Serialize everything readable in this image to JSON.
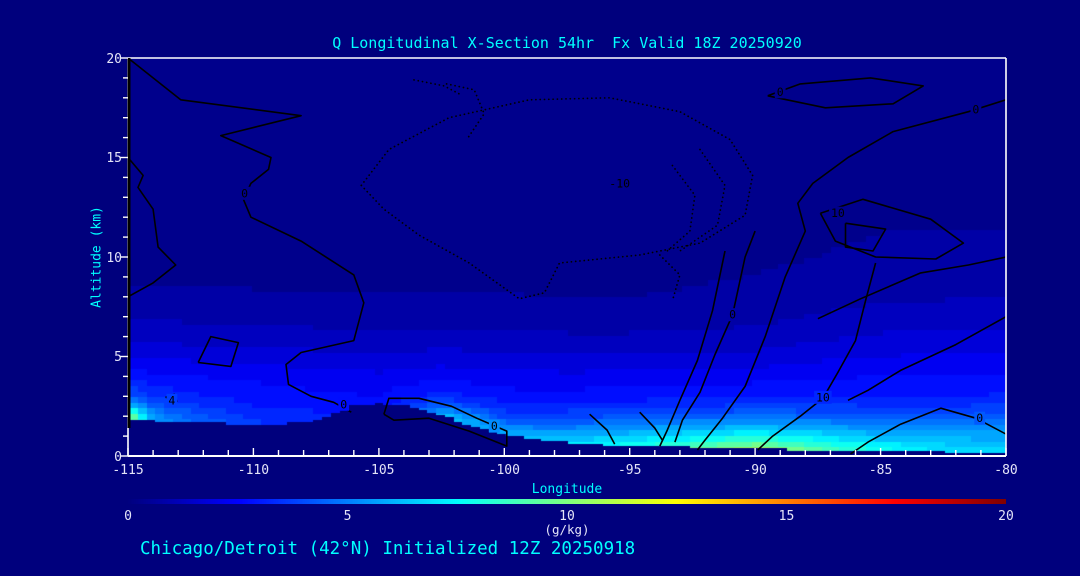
{
  "title": "Q Longitudinal X-Section 54hr  Fx Valid 18Z 20250920",
  "caption": "Chicago/Detroit (42°N) Initialized 12Z 20250918",
  "axes": {
    "x": {
      "label": "Longitude",
      "min": -115,
      "max": -80,
      "major_ticks": [
        -115,
        -110,
        -105,
        -100,
        -95,
        -90,
        -85,
        -80
      ],
      "minor_step": 1
    },
    "y": {
      "label": "Altitude (km)",
      "min": 0,
      "max": 20,
      "major_ticks": [
        0,
        5,
        10,
        15,
        20
      ],
      "minor_step": 1
    }
  },
  "colorbar": {
    "min": 0,
    "max": 20,
    "ticks": [
      0,
      5,
      10,
      15,
      20
    ],
    "units": "(g/kg)",
    "colormap": "jet"
  },
  "colors": {
    "page_bg": "#00007D",
    "terrain": "#00007D",
    "title": "#00FFFF",
    "axis_title": "#00FFFF",
    "tick_label": "#E4E4F8",
    "axis_line": "#FFFFFF",
    "contour_line": "#000000",
    "left_axis_overlay": "#000000"
  },
  "chart_data": {
    "type": "heatmap",
    "title": "Q Longitudinal X-Section 54hr  Fx Valid 18Z 20250920",
    "xlabel": "Longitude",
    "ylabel": "Altitude (km)",
    "xlim": [
      -115,
      -80
    ],
    "ylim": [
      0,
      20
    ],
    "units": "g/kg",
    "value_range": [
      0,
      20
    ],
    "quantize_step": 0.5,
    "lon_stations": [
      -115,
      -114,
      -112.5,
      -110,
      -107.5,
      -105,
      -102.5,
      -100,
      -97.5,
      -95,
      -92.5,
      -90,
      -87.5,
      -85,
      -82.5,
      -80
    ],
    "altitudes_km": [
      0,
      0.5,
      1,
      1.5,
      2,
      2.5,
      3,
      4,
      5,
      6,
      7,
      8,
      10,
      12,
      16,
      20
    ],
    "q_gkg": [
      [
        10.5,
        10.5,
        10.5,
        10.5,
        10.0,
        6.5,
        4.2,
        2.8,
        2.0,
        1.35,
        0.95,
        0.6,
        0.3,
        0.2,
        0.1,
        0.05
      ],
      [
        5.5,
        5.5,
        5.5,
        5.5,
        5.2,
        4.3,
        3.4,
        2.6,
        1.9,
        1.3,
        0.9,
        0.6,
        0.3,
        0.2,
        0.1,
        0.05
      ],
      [
        4.6,
        4.6,
        4.6,
        4.6,
        4.2,
        3.6,
        3.1,
        2.5,
        1.85,
        1.25,
        0.9,
        0.6,
        0.3,
        0.2,
        0.1,
        0.05
      ],
      [
        3.7,
        3.7,
        3.7,
        3.7,
        3.3,
        3.0,
        2.8,
        2.35,
        1.75,
        1.2,
        0.85,
        0.55,
        0.3,
        0.2,
        0.1,
        0.05
      ],
      [
        3.3,
        3.3,
        3.3,
        3.3,
        3.1,
        2.85,
        2.6,
        2.2,
        1.65,
        1.15,
        0.8,
        0.55,
        0.28,
        0.18,
        0.1,
        0.05
      ],
      [
        2.7,
        2.7,
        2.7,
        2.7,
        2.7,
        2.7,
        2.5,
        2.1,
        1.55,
        1.1,
        0.78,
        0.52,
        0.28,
        0.18,
        0.1,
        0.05
      ],
      [
        7.0,
        7.0,
        7.0,
        7.0,
        6.3,
        4.4,
        3.2,
        2.3,
        1.7,
        1.15,
        0.8,
        0.55,
        0.3,
        0.18,
        0.1,
        0.05
      ],
      [
        7.0,
        7.0,
        6.0,
        4.8,
        3.8,
        3.1,
        2.7,
        2.15,
        1.6,
        1.1,
        0.78,
        0.52,
        0.3,
        0.18,
        0.1,
        0.05
      ],
      [
        7.8,
        7.2,
        5.9,
        4.7,
        3.8,
        3.15,
        2.7,
        2.1,
        1.55,
        1.05,
        0.72,
        0.5,
        0.3,
        0.18,
        0.1,
        0.05
      ],
      [
        8.8,
        7.8,
        6.3,
        5.0,
        4.0,
        3.3,
        2.75,
        2.15,
        1.55,
        1.05,
        0.72,
        0.5,
        0.3,
        0.2,
        0.1,
        0.05
      ],
      [
        10.4,
        8.8,
        7.0,
        5.5,
        4.3,
        3.45,
        2.85,
        2.2,
        1.6,
        1.1,
        0.78,
        0.55,
        0.35,
        0.22,
        0.12,
        0.05
      ],
      [
        12.3,
        9.8,
        7.6,
        5.8,
        4.5,
        3.6,
        2.95,
        2.25,
        1.65,
        1.15,
        0.85,
        0.62,
        0.4,
        0.25,
        0.13,
        0.05
      ],
      [
        9.8,
        8.4,
        6.9,
        5.5,
        4.35,
        3.55,
        3.0,
        2.4,
        1.85,
        1.4,
        1.05,
        0.8,
        0.5,
        0.3,
        0.15,
        0.05
      ],
      [
        8.2,
        7.4,
        6.0,
        5.0,
        4.15,
        3.5,
        3.0,
        2.5,
        2.0,
        1.55,
        1.2,
        0.9,
        0.65,
        0.4,
        0.15,
        0.05
      ],
      [
        7.0,
        6.6,
        5.8,
        4.9,
        4.1,
        3.5,
        3.0,
        2.55,
        2.05,
        1.62,
        1.27,
        0.95,
        0.7,
        0.4,
        0.15,
        0.05
      ],
      [
        6.8,
        6.4,
        5.7,
        4.9,
        4.15,
        3.55,
        3.05,
        2.55,
        2.1,
        1.65,
        1.28,
        0.97,
        0.7,
        0.4,
        0.15,
        0.05
      ]
    ],
    "terrain": {
      "lons": [
        -115,
        -113.75,
        -112.5,
        -111.25,
        -110,
        -108.75,
        -107.5,
        -106.25,
        -105,
        -103.75,
        -102.5,
        -101.25,
        -100,
        -98.75,
        -97.5,
        -96.25,
        -95,
        -93.75,
        -92.5,
        -91.25,
        -90,
        -88.75,
        -87.5,
        -86.25,
        -85,
        -83.75,
        -82.5,
        -81.25,
        -80
      ],
      "height_km": [
        1.85,
        1.7,
        1.68,
        1.62,
        1.6,
        1.62,
        1.75,
        2.45,
        2.6,
        2.5,
        2.0,
        1.5,
        1.0,
        0.8,
        0.65,
        0.55,
        0.5,
        0.45,
        0.42,
        0.36,
        0.32,
        0.3,
        0.28,
        0.25,
        0.22,
        0.2,
        0.18,
        0.16,
        0.15
      ]
    },
    "overlay_contours": {
      "solid": [
        [
          [
            -115,
            20
          ],
          [
            -112.9,
            17.9
          ],
          [
            -108.1,
            17.1
          ],
          [
            -111.3,
            16.1
          ],
          [
            -109.3,
            15.0
          ],
          [
            -109.4,
            14.4
          ],
          [
            -110.1,
            13.7
          ],
          [
            -110.4,
            12.9
          ],
          [
            -110.1,
            12.0
          ],
          [
            -108.1,
            10.8
          ],
          [
            -106.0,
            9.1
          ],
          [
            -105.6,
            7.7
          ],
          [
            -106.0,
            5.8
          ],
          [
            -108.1,
            5.2
          ],
          [
            -108.7,
            4.6
          ],
          [
            -108.6,
            3.6
          ],
          [
            -107.7,
            3.0
          ],
          [
            -106.8,
            2.7
          ],
          [
            -106.1,
            2.2
          ]
        ],
        [
          [
            -115,
            15.0
          ],
          [
            -114.4,
            14.1
          ],
          [
            -114.6,
            13.5
          ],
          [
            -114.0,
            12.4
          ],
          [
            -113.8,
            10.5
          ],
          [
            -113.1,
            9.6
          ],
          [
            -114.0,
            8.7
          ],
          [
            -115,
            8.0
          ]
        ],
        [
          [
            -112.2,
            4.7
          ],
          [
            -111.7,
            6.0
          ],
          [
            -110.6,
            5.7
          ],
          [
            -110.9,
            4.5
          ],
          [
            -112.2,
            4.7
          ]
        ],
        [
          [
            -113.5,
            2.95
          ],
          [
            -113.15,
            3.1
          ],
          [
            -113.05,
            2.75
          ],
          [
            -113.5,
            2.95
          ]
        ],
        [
          [
            -104.8,
            2.1
          ],
          [
            -104.6,
            2.9
          ],
          [
            -103.4,
            2.9
          ],
          [
            -102.1,
            2.5
          ],
          [
            -101.1,
            1.9
          ],
          [
            -99.9,
            1.25
          ],
          [
            -99.9,
            0.5
          ],
          [
            -101.4,
            1.25
          ],
          [
            -103.0,
            1.9
          ],
          [
            -104.4,
            1.8
          ],
          [
            -104.8,
            2.1
          ]
        ],
        [
          [
            -89.5,
            18.1
          ],
          [
            -88.2,
            18.7
          ],
          [
            -85.4,
            19.0
          ],
          [
            -83.3,
            18.6
          ],
          [
            -84.5,
            17.7
          ],
          [
            -87.2,
            17.5
          ],
          [
            -89.5,
            18.1
          ]
        ],
        [
          [
            -80,
            17.9
          ],
          [
            -81.5,
            17.3
          ],
          [
            -84.5,
            16.3
          ],
          [
            -86.3,
            15.0
          ],
          [
            -87.7,
            13.7
          ],
          [
            -88.3,
            12.7
          ],
          [
            -88.0,
            11.3
          ],
          [
            -88.8,
            9.0
          ],
          [
            -89.6,
            6.0
          ],
          [
            -90.4,
            3.5
          ],
          [
            -91.3,
            1.9
          ],
          [
            -92.0,
            0.8
          ],
          [
            -92.3,
            0.3
          ]
        ],
        [
          [
            -87.4,
            12.2
          ],
          [
            -85.7,
            12.9
          ],
          [
            -83.0,
            11.9
          ],
          [
            -81.7,
            10.7
          ],
          [
            -82.8,
            9.9
          ],
          [
            -85.2,
            10.0
          ],
          [
            -86.8,
            10.8
          ],
          [
            -87.4,
            12.2
          ]
        ],
        [
          [
            -86.4,
            11.7
          ],
          [
            -84.8,
            11.4
          ],
          [
            -85.3,
            10.3
          ],
          [
            -86.4,
            10.5
          ],
          [
            -86.4,
            11.7
          ]
        ],
        [
          [
            -90.0,
            11.3
          ],
          [
            -90.4,
            10.0
          ],
          [
            -90.9,
            7.1
          ],
          [
            -91.6,
            5.1
          ],
          [
            -92.2,
            3.2
          ],
          [
            -92.9,
            1.8
          ],
          [
            -93.2,
            0.7
          ]
        ],
        [
          [
            -91.2,
            10.3
          ],
          [
            -91.7,
            7.3
          ],
          [
            -92.3,
            4.8
          ],
          [
            -93.0,
            2.8
          ],
          [
            -93.5,
            1.3
          ],
          [
            -93.8,
            0.5
          ]
        ],
        [
          [
            -85.2,
            9.7
          ],
          [
            -85.6,
            7.8
          ],
          [
            -86.0,
            5.8
          ],
          [
            -86.7,
            4.2
          ],
          [
            -87.3,
            2.9
          ],
          [
            -88.2,
            2.0
          ],
          [
            -89.3,
            1.0
          ],
          [
            -89.9,
            0.3
          ]
        ],
        [
          [
            -80,
            1.1
          ],
          [
            -81.2,
            1.9
          ],
          [
            -82.6,
            2.4
          ],
          [
            -84.2,
            1.6
          ],
          [
            -85.5,
            0.7
          ],
          [
            -86.2,
            0.1
          ]
        ],
        [
          [
            -96.6,
            2.1
          ],
          [
            -95.9,
            1.3
          ],
          [
            -95.6,
            0.6
          ]
        ],
        [
          [
            -94.6,
            2.2
          ],
          [
            -94.0,
            1.4
          ],
          [
            -93.7,
            0.8
          ]
        ],
        [
          [
            -80,
            7.0
          ],
          [
            -82,
            5.6
          ],
          [
            -84.2,
            4.3
          ],
          [
            -85.5,
            3.3
          ],
          [
            -86.3,
            2.8
          ]
        ],
        [
          [
            -80,
            10.0
          ],
          [
            -81.5,
            9.6
          ],
          [
            -83.4,
            9.2
          ],
          [
            -85.8,
            7.9
          ],
          [
            -87.5,
            6.9
          ]
        ]
      ],
      "dotted": [
        [
          [
            -105.7,
            13.6
          ],
          [
            -104.6,
            15.4
          ],
          [
            -102.2,
            17.0
          ],
          [
            -99.0,
            17.9
          ],
          [
            -95.8,
            18.0
          ],
          [
            -93.0,
            17.3
          ],
          [
            -91.0,
            15.9
          ],
          [
            -90.1,
            14.1
          ],
          [
            -90.4,
            12.1
          ],
          [
            -92.2,
            10.7
          ],
          [
            -94.6,
            10.1
          ],
          [
            -97.8,
            9.7
          ],
          [
            -98.4,
            8.2
          ],
          [
            -99.4,
            7.9
          ],
          [
            -101.4,
            9.7
          ],
          [
            -103.4,
            11.1
          ],
          [
            -104.8,
            12.4
          ],
          [
            -105.7,
            13.6
          ]
        ],
        [
          [
            -92.2,
            15.4
          ],
          [
            -91.2,
            13.6
          ],
          [
            -91.5,
            11.6
          ],
          [
            -93.0,
            10.3
          ]
        ],
        [
          [
            -93.3,
            14.6
          ],
          [
            -92.4,
            13.1
          ],
          [
            -92.6,
            11.3
          ],
          [
            -93.6,
            10.2
          ]
        ],
        [
          [
            -93.8,
            10.1
          ],
          [
            -93.0,
            9.1
          ],
          [
            -93.3,
            7.8
          ]
        ],
        [
          [
            -103.6,
            18.9
          ],
          [
            -102.4,
            18.6
          ],
          [
            -101.8,
            18.2
          ]
        ],
        [
          [
            -102.3,
            18.7
          ],
          [
            -101.2,
            18.4
          ],
          [
            -100.8,
            17.2
          ],
          [
            -101.5,
            15.9
          ]
        ]
      ],
      "labels": [
        {
          "t": "0",
          "lon": -110.35,
          "alt": 13.2
        },
        {
          "t": "4",
          "lon": -113.25,
          "alt": 2.8
        },
        {
          "t": "0",
          "lon": -106.4,
          "alt": 2.6
        },
        {
          "t": "0",
          "lon": -100.4,
          "alt": 1.5
        },
        {
          "t": "-10",
          "lon": -95.4,
          "alt": 13.7
        },
        {
          "t": "0",
          "lon": -90.9,
          "alt": 7.1
        },
        {
          "t": "0",
          "lon": -89.0,
          "alt": 18.3
        },
        {
          "t": "0",
          "lon": -81.2,
          "alt": 17.4
        },
        {
          "t": "10",
          "lon": -86.7,
          "alt": 12.2
        },
        {
          "t": "10",
          "lon": -87.3,
          "alt": 2.95
        },
        {
          "t": "0",
          "lon": -81.05,
          "alt": 1.9
        }
      ]
    }
  }
}
